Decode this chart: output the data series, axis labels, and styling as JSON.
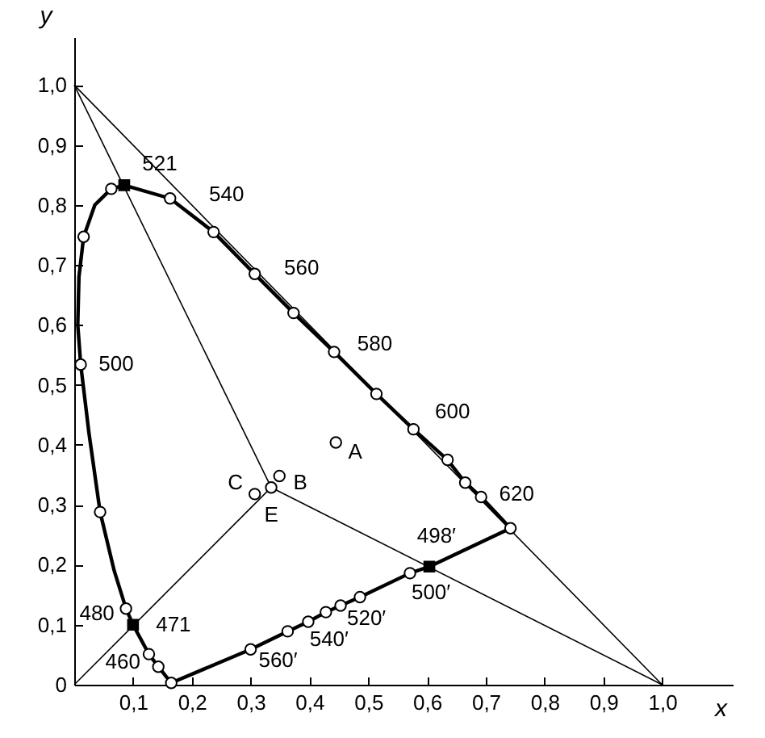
{
  "chart_data": {
    "type": "line",
    "xlabel": "x",
    "ylabel": "y",
    "xlim": [
      0,
      1.12
    ],
    "ylim": [
      0,
      1.08
    ],
    "xticks": [
      {
        "value": 0,
        "label": null
      },
      {
        "value": 0.1,
        "label": "0,1"
      },
      {
        "value": 0.2,
        "label": "0,2"
      },
      {
        "value": 0.3,
        "label": "0,3"
      },
      {
        "value": 0.4,
        "label": "0,4"
      },
      {
        "value": 0.5,
        "label": "0,5"
      },
      {
        "value": 0.6,
        "label": "0,6"
      },
      {
        "value": 0.7,
        "label": "0,7"
      },
      {
        "value": 0.8,
        "label": "0,8"
      },
      {
        "value": 0.9,
        "label": "0,9"
      },
      {
        "value": 1.0,
        "label": "1,0"
      }
    ],
    "yticks": [
      {
        "value": 0,
        "label": "0"
      },
      {
        "value": 0.1,
        "label": "0,1"
      },
      {
        "value": 0.2,
        "label": "0,2"
      },
      {
        "value": 0.3,
        "label": "0,3"
      },
      {
        "value": 0.4,
        "label": "0,4"
      },
      {
        "value": 0.5,
        "label": "0,5"
      },
      {
        "value": 0.6,
        "label": "0,6"
      },
      {
        "value": 0.7,
        "label": "0,7"
      },
      {
        "value": 0.8,
        "label": "0,8"
      },
      {
        "value": 0.9,
        "label": "0,9"
      },
      {
        "value": 1.0,
        "label": "1,0"
      }
    ],
    "grid": false,
    "series": [
      {
        "color": "#000000",
        "x": [
          0.742,
          0.692,
          0.665,
          0.635,
          0.577,
          0.514,
          0.442,
          0.373,
          0.307,
          0.237,
          0.163,
          0.085,
          0.063,
          0.035,
          0.016,
          0.008,
          0.006
        ],
        "values": [
          0.261,
          0.313,
          0.337,
          0.375,
          0.426,
          0.485,
          0.555,
          0.62,
          0.685,
          0.755,
          0.811,
          0.833,
          0.827,
          0.8,
          0.747,
          0.68,
          0.6
        ]
      },
      {
        "color": "#000000",
        "x": [
          0.006,
          0.011,
          0.025,
          0.044,
          0.068,
          0.088,
          0.1,
          0.127,
          0.143,
          0.165
        ],
        "values": [
          0.6,
          0.534,
          0.42,
          0.288,
          0.19,
          0.127,
          0.1,
          0.051,
          0.03,
          0.003
        ]
      },
      {
        "color": "#000000",
        "x": [
          0.165,
          0.3,
          0.363,
          0.398,
          0.428,
          0.453,
          0.486,
          0.571,
          0.604,
          0.742
        ],
        "values": [
          0.003,
          0.059,
          0.089,
          0.105,
          0.121,
          0.132,
          0.146,
          0.186,
          0.197,
          0.261
        ]
      },
      {
        "color": "#000000",
        "x": [
          0,
          1
        ],
        "values": [
          1,
          0
        ]
      },
      {
        "color": "#000000",
        "x": [
          0,
          0.335
        ],
        "values": [
          1,
          0.329
        ]
      },
      {
        "color": "#000000",
        "x": [
          0.335,
          1
        ],
        "values": [
          0.329,
          0
        ]
      },
      {
        "color": "#000000",
        "x": [
          0,
          0.335
        ],
        "values": [
          0,
          0.329
        ]
      },
      {
        "type": "scatter",
        "marker": "circle",
        "color": "#000000",
        "x": [
          0.063,
          0.016,
          0.163,
          0.237,
          0.307,
          0.373,
          0.442,
          0.514,
          0.577,
          0.635,
          0.665,
          0.692,
          0.742,
          0.011,
          0.044,
          0.088,
          0.127,
          0.143,
          0.165,
          0.3,
          0.363,
          0.398,
          0.428,
          0.453,
          0.486,
          0.571,
          0.445,
          0.349,
          0.307,
          0.335
        ],
        "values": [
          0.827,
          0.747,
          0.811,
          0.755,
          0.685,
          0.62,
          0.555,
          0.485,
          0.426,
          0.375,
          0.337,
          0.313,
          0.261,
          0.534,
          0.288,
          0.127,
          0.051,
          0.03,
          0.003,
          0.059,
          0.089,
          0.105,
          0.121,
          0.132,
          0.146,
          0.186,
          0.404,
          0.348,
          0.318,
          0.329
        ]
      },
      {
        "type": "scatter",
        "marker": "square",
        "color": "#000000",
        "x": [
          0.085,
          0.1,
          0.604
        ],
        "values": [
          0.833,
          0.1,
          0.197
        ]
      }
    ],
    "annotations": [
      {
        "text": "521",
        "x": 0.085,
        "y": 0.833
      },
      {
        "text": "540",
        "x": 0.237,
        "y": 0.755
      },
      {
        "text": "560",
        "x": 0.373,
        "y": 0.62
      },
      {
        "text": "580",
        "x": 0.514,
        "y": 0.485
      },
      {
        "text": "600",
        "x": 0.635,
        "y": 0.375
      },
      {
        "text": "620",
        "x": 0.692,
        "y": 0.313
      },
      {
        "text": "500",
        "x": 0.011,
        "y": 0.534
      },
      {
        "text": "480",
        "x": 0.088,
        "y": 0.127
      },
      {
        "text": "471",
        "x": 0.1,
        "y": 0.1
      },
      {
        "text": "460",
        "x": 0.143,
        "y": 0.03
      },
      {
        "text": "498′",
        "x": 0.66,
        "y": 0.223
      },
      {
        "text": "500′",
        "x": 0.604,
        "y": 0.197
      },
      {
        "text": "520′",
        "x": 0.486,
        "y": 0.146
      },
      {
        "text": "540′",
        "x": 0.428,
        "y": 0.121
      },
      {
        "text": "560′",
        "x": 0.3,
        "y": 0.059
      },
      {
        "text": "A",
        "x": 0.445,
        "y": 0.404
      },
      {
        "text": "B",
        "x": 0.349,
        "y": 0.348
      },
      {
        "text": "C",
        "x": 0.307,
        "y": 0.318
      },
      {
        "text": "E",
        "x": 0.335,
        "y": 0.329
      }
    ]
  }
}
